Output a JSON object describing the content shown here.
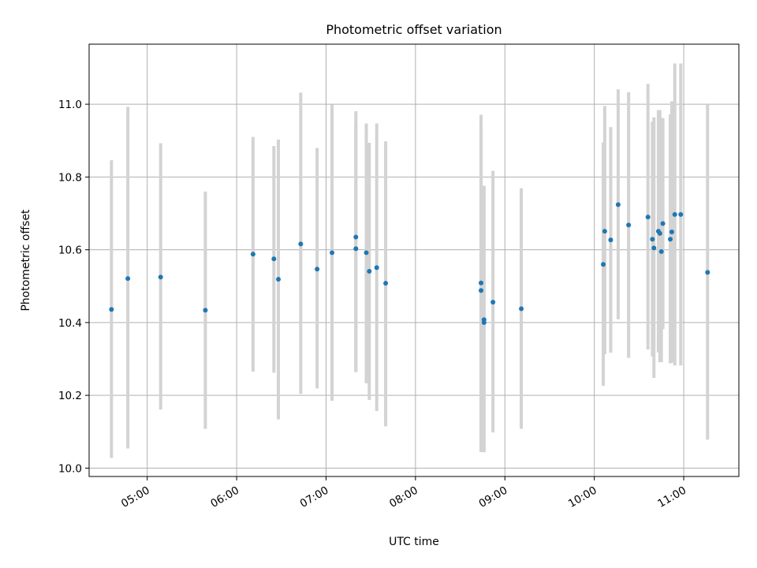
{
  "chart_data": {
    "type": "scatter",
    "title": "Photometric offset variation",
    "xlabel": "UTC time",
    "ylabel": "Photometric offset",
    "xlim": [
      "04:21",
      "11:37"
    ],
    "ylim": [
      9.977,
      11.165
    ],
    "grid": true,
    "xticks": [
      "05:00",
      "06:00",
      "07:00",
      "08:00",
      "09:00",
      "10:00",
      "11:00"
    ],
    "yticks": [
      "10.0",
      "10.2",
      "10.4",
      "10.6",
      "10.8",
      "11.0"
    ],
    "marker_color": "#1f77b4",
    "errorbar_color": "#d3d3d3",
    "series": [
      {
        "points": [
          {
            "x": "04:36",
            "y": 10.436,
            "ylow": 10.028,
            "yhigh": 10.846
          },
          {
            "x": "04:47",
            "y": 10.521,
            "ylow": 10.054,
            "yhigh": 10.993
          },
          {
            "x": "05:09",
            "y": 10.525,
            "ylow": 10.161,
            "yhigh": 10.893
          },
          {
            "x": "05:39",
            "y": 10.434,
            "ylow": 10.108,
            "yhigh": 10.76
          },
          {
            "x": "06:11",
            "y": 10.588,
            "ylow": 10.265,
            "yhigh": 10.91
          },
          {
            "x": "06:25",
            "y": 10.575,
            "ylow": 10.262,
            "yhigh": 10.885
          },
          {
            "x": "06:28",
            "y": 10.519,
            "ylow": 10.134,
            "yhigh": 10.903
          },
          {
            "x": "06:43",
            "y": 10.616,
            "ylow": 10.204,
            "yhigh": 11.032
          },
          {
            "x": "06:54",
            "y": 10.547,
            "ylow": 10.219,
            "yhigh": 10.88
          },
          {
            "x": "07:04",
            "y": 10.592,
            "ylow": 10.185,
            "yhigh": 10.999
          },
          {
            "x": "07:20",
            "y": 10.635,
            "ylow": 10.264,
            "yhigh": 10.981
          },
          {
            "x": "07:20",
            "y": 10.603,
            "ylow": 10.264,
            "yhigh": 10.944
          },
          {
            "x": "07:27",
            "y": 10.592,
            "ylow": 10.233,
            "yhigh": 10.947
          },
          {
            "x": "07:29",
            "y": 10.541,
            "ylow": 10.187,
            "yhigh": 10.894
          },
          {
            "x": "07:34",
            "y": 10.551,
            "ylow": 10.157,
            "yhigh": 10.947
          },
          {
            "x": "07:40",
            "y": 10.508,
            "ylow": 10.115,
            "yhigh": 10.898
          },
          {
            "x": "08:44",
            "y": 10.509,
            "ylow": 10.049,
            "yhigh": 10.971
          },
          {
            "x": "08:44",
            "y": 10.488,
            "ylow": 10.044,
            "yhigh": 10.935
          },
          {
            "x": "08:46",
            "y": 10.4,
            "ylow": 10.044,
            "yhigh": 10.776
          },
          {
            "x": "08:46",
            "y": 10.408,
            "ylow": 10.044,
            "yhigh": 10.776
          },
          {
            "x": "08:52",
            "y": 10.456,
            "ylow": 10.098,
            "yhigh": 10.817
          },
          {
            "x": "09:11",
            "y": 10.438,
            "ylow": 10.108,
            "yhigh": 10.769
          },
          {
            "x": "10:06",
            "y": 10.56,
            "ylow": 10.226,
            "yhigh": 10.895
          },
          {
            "x": "10:07",
            "y": 10.651,
            "ylow": 10.313,
            "yhigh": 10.995
          },
          {
            "x": "10:11",
            "y": 10.627,
            "ylow": 10.317,
            "yhigh": 10.937
          },
          {
            "x": "10:16",
            "y": 10.724,
            "ylow": 10.409,
            "yhigh": 11.041
          },
          {
            "x": "10:23",
            "y": 10.668,
            "ylow": 10.303,
            "yhigh": 11.033
          },
          {
            "x": "10:36",
            "y": 10.69,
            "ylow": 10.326,
            "yhigh": 11.056
          },
          {
            "x": "10:39",
            "y": 10.629,
            "ylow": 10.307,
            "yhigh": 10.952
          },
          {
            "x": "10:40",
            "y": 10.605,
            "ylow": 10.248,
            "yhigh": 10.964
          },
          {
            "x": "10:43",
            "y": 10.651,
            "ylow": 10.318,
            "yhigh": 10.984
          },
          {
            "x": "10:44",
            "y": 10.645,
            "ylow": 10.291,
            "yhigh": 10.984
          },
          {
            "x": "10:45",
            "y": 10.595,
            "ylow": 10.291,
            "yhigh": 10.902
          },
          {
            "x": "10:46",
            "y": 10.672,
            "ylow": 10.382,
            "yhigh": 10.962
          },
          {
            "x": "10:51",
            "y": 10.629,
            "ylow": 10.288,
            "yhigh": 10.972
          },
          {
            "x": "10:52",
            "y": 10.649,
            "ylow": 10.29,
            "yhigh": 11.008
          },
          {
            "x": "10:54",
            "y": 10.697,
            "ylow": 10.282,
            "yhigh": 11.112
          },
          {
            "x": "10:58",
            "y": 10.697,
            "ylow": 10.282,
            "yhigh": 11.112
          },
          {
            "x": "11:16",
            "y": 10.538,
            "ylow": 10.078,
            "yhigh": 11.0
          }
        ]
      }
    ]
  }
}
